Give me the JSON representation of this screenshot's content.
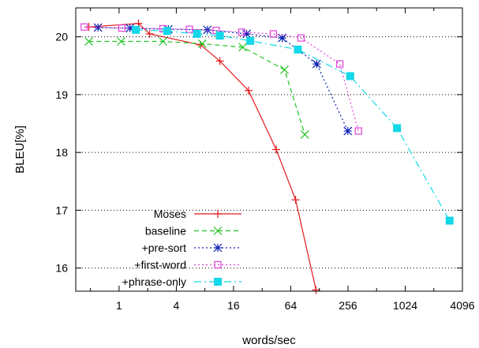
{
  "chart_data": {
    "type": "line",
    "xlabel": "words/sec",
    "ylabel": "BLEU[%]",
    "x_scale": "log2",
    "xlim": [
      0.35,
      4096
    ],
    "ylim": [
      15.6,
      20.5
    ],
    "x_ticks": [
      1,
      4,
      16,
      64,
      256,
      1024,
      4096
    ],
    "y_ticks": [
      16,
      17,
      18,
      19,
      20
    ],
    "grid": "horizontal-dotted",
    "legend_position": "bottom-left",
    "series": [
      {
        "name": "Moses",
        "color": "#e41a1c",
        "marker": "plus",
        "dash": "solid",
        "points": [
          [
            0.48,
            20.17
          ],
          [
            1.6,
            20.23
          ],
          [
            2.1,
            20.05
          ],
          [
            7.2,
            19.86
          ],
          [
            11.5,
            19.58
          ],
          [
            23,
            19.07
          ],
          [
            45,
            18.05
          ],
          [
            72,
            17.18
          ],
          [
            118,
            15.62
          ]
        ]
      },
      {
        "name": "baseline",
        "color": "#1ec41e",
        "marker": "x",
        "dash": "dashed",
        "points": [
          [
            0.48,
            19.92
          ],
          [
            1.05,
            19.92
          ],
          [
            2.9,
            19.92
          ],
          [
            7.5,
            19.88
          ],
          [
            20,
            19.82
          ],
          [
            55,
            19.43
          ],
          [
            90,
            18.31
          ]
        ]
      },
      {
        "name": "+pre-sort",
        "color": "#0a1fb5",
        "marker": "star",
        "dash": "dotted",
        "points": [
          [
            0.6,
            20.16
          ],
          [
            1.3,
            20.15
          ],
          [
            3.3,
            20.13
          ],
          [
            8.5,
            20.12
          ],
          [
            22,
            20.05
          ],
          [
            52,
            19.98
          ],
          [
            120,
            19.53
          ],
          [
            255,
            18.37
          ]
        ]
      },
      {
        "name": "+first-word",
        "color": "#e040d8",
        "marker": "open-square",
        "dash": "dotted",
        "points": [
          [
            0.43,
            20.17
          ],
          [
            1.07,
            20.15
          ],
          [
            2.9,
            20.14
          ],
          [
            5.5,
            20.13
          ],
          [
            10.5,
            20.11
          ],
          [
            19.5,
            20.08
          ],
          [
            42,
            20.05
          ],
          [
            82,
            19.98
          ],
          [
            210,
            19.53
          ],
          [
            330,
            18.37
          ]
        ]
      },
      {
        "name": "+phrase-only",
        "color": "#12d8e8",
        "marker": "filled-square",
        "dash": "dashdot",
        "points": [
          [
            1.5,
            20.12
          ],
          [
            3.2,
            20.1
          ],
          [
            6.6,
            20.05
          ],
          [
            11.5,
            20.02
          ],
          [
            24,
            19.93
          ],
          [
            76,
            19.78
          ],
          [
            270,
            19.32
          ],
          [
            840,
            18.42
          ],
          [
            3000,
            16.82
          ]
        ]
      }
    ]
  }
}
